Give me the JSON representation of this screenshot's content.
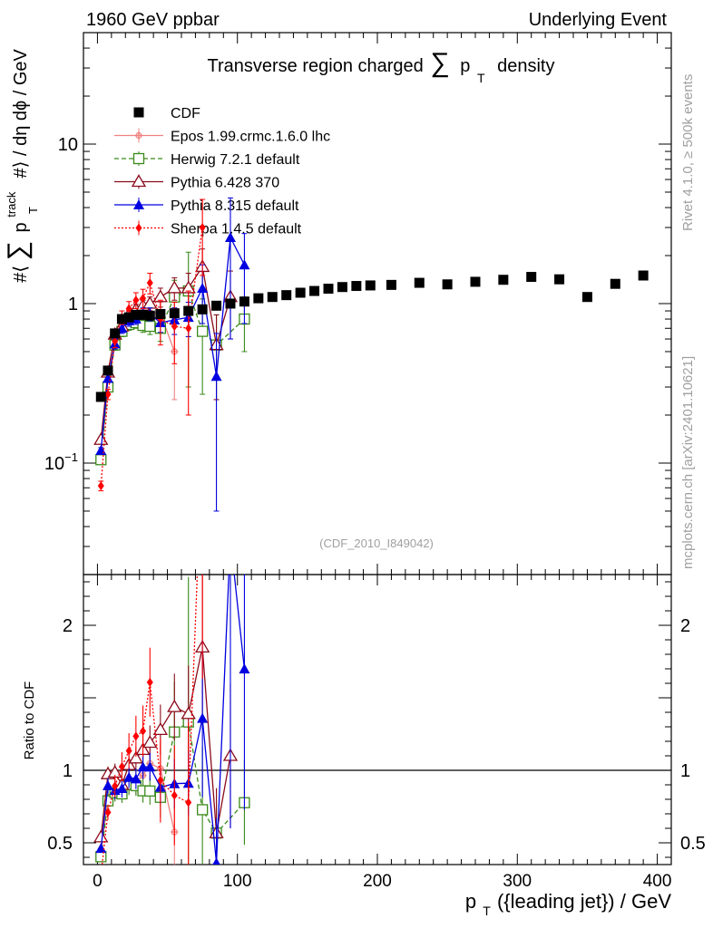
{
  "header": {
    "left": "1960 GeV ppbar",
    "right": "Underlying Event",
    "subtitle": "(CDF_2010_I849042)",
    "side_top": "Rivet 4.1.0, ≥ 500k events",
    "side_bottom": "mcplots.cern.ch [arXiv:2401.10621]"
  },
  "chart_data": {
    "type": "scatter",
    "title": "Transverse region charged ∑ p_T density",
    "title_parts": {
      "pre": "Transverse region charged",
      "sum": "∑",
      "p": "p",
      "sub": "T",
      "post": "density"
    },
    "ylabel_parts": {
      "pre": "#⟨",
      "sum": "∑",
      "p": "p",
      "sup": "track",
      "sub": "T",
      "post": "#⟩ / dη dϕ / GeV"
    },
    "xlabel_parts": {
      "p": "p",
      "sub": "T",
      "post": "({leading jet}) / GeV"
    },
    "ratio_ylabel": "Ratio to CDF",
    "xlim": [
      -10,
      410
    ],
    "ylim": [
      0.02,
      50
    ],
    "yscale": "log",
    "ratio_ylim": [
      0.35,
      2.35
    ],
    "x_ticks": [
      0,
      100,
      200,
      300,
      400
    ],
    "x_tick_labels": [
      "0",
      "100",
      "200",
      "300",
      "400"
    ],
    "y_ticks": [
      0.1,
      1,
      10
    ],
    "y_tick_labels": [
      {
        "base": "10",
        "exp": "−1"
      },
      {
        "base": "1"
      },
      {
        "base": "10"
      }
    ],
    "ratio_ticks": [
      0.5,
      1,
      2
    ],
    "ratio_tick_labels": [
      "0.5",
      "1",
      "2"
    ],
    "series": [
      {
        "name": "CDF",
        "color": "#000000",
        "marker": "square-filled",
        "dash": "none",
        "x": [
          2.5,
          7.5,
          12.5,
          17.5,
          22.5,
          27.5,
          32.5,
          37.5,
          45,
          55,
          65,
          75,
          85,
          95,
          105,
          115,
          125,
          135,
          145,
          155,
          165,
          175,
          185,
          195,
          210,
          230,
          250,
          270,
          290,
          310,
          330,
          350,
          370,
          390
        ],
        "y": [
          0.26,
          0.38,
          0.65,
          0.8,
          0.82,
          0.85,
          0.85,
          0.84,
          0.86,
          0.87,
          0.9,
          0.92,
          0.97,
          1.0,
          1.03,
          1.08,
          1.1,
          1.13,
          1.17,
          1.2,
          1.24,
          1.27,
          1.29,
          1.3,
          1.31,
          1.35,
          1.32,
          1.37,
          1.41,
          1.47,
          1.42,
          1.1,
          1.33,
          1.5
        ],
        "yerr": [
          0.01,
          0.01,
          0.02,
          0.02,
          0.02,
          0.02,
          0.02,
          0.02,
          0.02,
          0.02,
          0.02,
          0.02,
          0.02,
          0.02,
          0.02,
          0.02,
          0.02,
          0.02,
          0.02,
          0.02,
          0.02,
          0.02,
          0.02,
          0.02,
          0.02,
          0.02,
          0.02,
          0.02,
          0.02,
          0.03,
          0.03,
          0.03,
          0.03,
          0.04
        ]
      },
      {
        "name": "Epos 1.99.crmc.1.6.0 lhc",
        "color": "#f08080",
        "marker": "cross",
        "dash": "none",
        "x": [
          2.5,
          7.5,
          12.5,
          17.5,
          22.5,
          27.5,
          32.5,
          37.5,
          45,
          55
        ],
        "y": [
          0.11,
          0.31,
          0.55,
          0.7,
          0.75,
          0.78,
          0.82,
          0.88,
          0.87,
          0.5
        ],
        "yerr": [
          0.005,
          0.02,
          0.04,
          0.05,
          0.06,
          0.07,
          0.08,
          0.1,
          0.15,
          0.25
        ]
      },
      {
        "name": "Herwig 7.2.1 default",
        "color": "#3a8a1a",
        "marker": "square-open",
        "dash": "5,3",
        "x": [
          2.5,
          7.5,
          12.5,
          17.5,
          22.5,
          27.5,
          32.5,
          37.5,
          45,
          55,
          65,
          75,
          85,
          105
        ],
        "y": [
          0.105,
          0.3,
          0.55,
          0.67,
          0.74,
          0.76,
          0.73,
          0.72,
          0.7,
          1.1,
          1.2,
          0.67,
          0.55,
          0.8
        ],
        "yerr": [
          0.005,
          0.02,
          0.04,
          0.05,
          0.06,
          0.06,
          0.07,
          0.08,
          0.12,
          0.3,
          0.9,
          0.4,
          0.3,
          0.3
        ]
      },
      {
        "name": "Pythia 6.428 370",
        "color": "#8b0a1a",
        "marker": "triangle-open",
        "dash": "none",
        "x": [
          2.5,
          7.5,
          12.5,
          17.5,
          22.5,
          27.5,
          32.5,
          37.5,
          45,
          55,
          65,
          75,
          85,
          95
        ],
        "y": [
          0.14,
          0.37,
          0.64,
          0.72,
          0.85,
          0.92,
          0.97,
          1.0,
          1.1,
          1.25,
          1.25,
          1.7,
          0.55,
          1.1
        ],
        "yerr": [
          0.005,
          0.02,
          0.04,
          0.05,
          0.06,
          0.07,
          0.08,
          0.1,
          0.15,
          0.2,
          0.3,
          0.5,
          0.3,
          0.5
        ]
      },
      {
        "name": "Pythia 8.315 default",
        "color": "#0000e0",
        "marker": "triangle-filled",
        "dash": "none",
        "x": [
          2.5,
          7.5,
          12.5,
          17.5,
          22.5,
          27.5,
          32.5,
          37.5,
          45,
          55,
          65,
          75,
          85,
          95,
          105
        ],
        "y": [
          0.12,
          0.34,
          0.56,
          0.7,
          0.78,
          0.8,
          0.87,
          0.86,
          0.76,
          0.79,
          0.82,
          1.25,
          0.35,
          2.6,
          1.75
        ],
        "yerr": [
          0.005,
          0.02,
          0.04,
          0.05,
          0.06,
          0.06,
          0.07,
          0.08,
          0.1,
          0.15,
          0.2,
          0.5,
          0.3,
          2.0,
          1.0
        ]
      },
      {
        "name": "Sherpa 1.4.5 default",
        "color": "#ff0000",
        "marker": "diamond",
        "dash": "2,2",
        "x": [
          2.5,
          7.5,
          12.5,
          17.5,
          22.5,
          27.5,
          32.5,
          37.5,
          45,
          55,
          65,
          75
        ],
        "y": [
          0.072,
          0.27,
          0.58,
          0.82,
          0.93,
          1.05,
          1.08,
          1.35,
          0.8,
          0.72,
          0.7,
          3.0
        ],
        "yerr": [
          0.005,
          0.02,
          0.05,
          0.08,
          0.1,
          0.12,
          0.15,
          0.2,
          0.25,
          0.3,
          0.5,
          1.5
        ]
      }
    ]
  }
}
